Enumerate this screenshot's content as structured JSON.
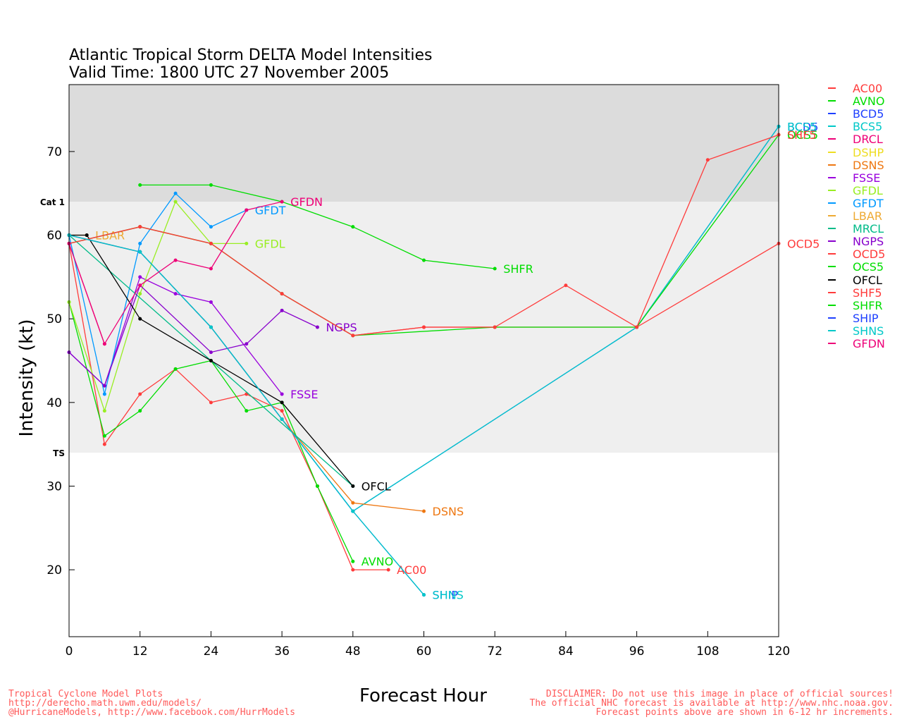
{
  "title": [
    "Atlantic Tropical Storm DELTA Model Intensities",
    "Valid Time: 1800 UTC 27 November 2005"
  ],
  "footer_left": [
    "Tropical Cyclone Model Plots",
    "http://derecho.math.uwm.edu/models/",
    "@HurricaneModels, http://www.facebook.com/HurrModels"
  ],
  "footer_right": [
    "DISCLAIMER: Do not use this image in place of official sources!",
    "The official NHC forecast is available at http://www.nhc.noaa.gov.",
    "Forecast points above are shown in 6-12 hr increments."
  ],
  "chart_data": {
    "type": "line",
    "title": "Atlantic Tropical Storm DELTA Model Intensities",
    "subtitle": "Valid Time: 1800 UTC 27 November 2005",
    "xlabel": "Forecast Hour",
    "ylabel": "Intensity (kt)",
    "xlim": [
      0,
      120
    ],
    "ylim": [
      12,
      78
    ],
    "xticks": [
      0,
      12,
      24,
      36,
      48,
      60,
      72,
      84,
      96,
      108,
      120
    ],
    "yticks": [
      20,
      30,
      40,
      50,
      60,
      70
    ],
    "grid": false,
    "legend_position": "right",
    "bands": [
      {
        "label": "TS",
        "from": 34,
        "to": 64,
        "color": "#efefef"
      },
      {
        "label": "Cat 1",
        "from": 64,
        "to": 78,
        "color": "#dcdcdc"
      }
    ],
    "series": [
      {
        "name": "AC00",
        "color": "#ff3b3b",
        "end_label": "AC00",
        "points": [
          [
            0,
            59
          ],
          [
            6,
            35
          ],
          [
            12,
            41
          ],
          [
            18,
            44
          ],
          [
            24,
            40
          ],
          [
            30,
            41
          ],
          [
            36,
            39
          ],
          [
            42,
            30
          ],
          [
            48,
            20
          ],
          [
            54,
            20
          ]
        ]
      },
      {
        "name": "AVNO",
        "color": "#00dd00",
        "end_label": "AVNO",
        "points": [
          [
            0,
            52
          ],
          [
            6,
            36
          ],
          [
            12,
            39
          ],
          [
            18,
            44
          ],
          [
            24,
            45
          ],
          [
            30,
            39
          ],
          [
            36,
            40
          ],
          [
            42,
            30
          ],
          [
            48,
            21
          ]
        ]
      },
      {
        "name": "BCD5",
        "color": "#1e40ff",
        "end_label": "BCD5",
        "points": [
          [
            0,
            60
          ],
          [
            12,
            58
          ],
          [
            24,
            49
          ],
          [
            36,
            38
          ],
          [
            48,
            27
          ],
          [
            96,
            49
          ],
          [
            120,
            73
          ]
        ]
      },
      {
        "name": "BCS5",
        "color": "#00c8c8",
        "end_label": "BCS5",
        "points": [
          [
            0,
            60
          ],
          [
            12,
            58
          ],
          [
            24,
            49
          ],
          [
            36,
            38
          ],
          [
            48,
            27
          ],
          [
            96,
            49
          ],
          [
            120,
            73
          ]
        ]
      },
      {
        "name": "DRCL",
        "color": "#ee0077",
        "end_label": "",
        "points": [
          [
            0,
            59
          ],
          [
            6,
            47
          ]
        ]
      },
      {
        "name": "DSHP",
        "color": "#eedd22",
        "end_label": "",
        "points": []
      },
      {
        "name": "DSNS",
        "color": "#ee7711",
        "end_label": "DSNS",
        "points": [
          [
            0,
            60
          ],
          [
            12,
            58
          ],
          [
            24,
            49
          ],
          [
            36,
            38
          ],
          [
            48,
            28
          ],
          [
            60,
            27
          ]
        ]
      },
      {
        "name": "FSSE",
        "color": "#9900dd",
        "end_label": "FSSE",
        "points": [
          [
            0,
            46
          ],
          [
            6,
            42
          ],
          [
            12,
            55
          ],
          [
            18,
            53
          ],
          [
            24,
            52
          ],
          [
            36,
            41
          ]
        ]
      },
      {
        "name": "GFDL",
        "color": "#99ee22",
        "end_label": "GFDL",
        "points": [
          [
            0,
            52
          ],
          [
            6,
            39
          ],
          [
            12,
            53
          ],
          [
            18,
            64
          ],
          [
            24,
            59
          ],
          [
            30,
            59
          ]
        ]
      },
      {
        "name": "GFDT",
        "color": "#0099ff",
        "end_label": "GFDT",
        "points": [
          [
            0,
            60
          ],
          [
            6,
            41
          ],
          [
            12,
            59
          ],
          [
            18,
            65
          ],
          [
            24,
            61
          ],
          [
            30,
            63
          ]
        ]
      },
      {
        "name": "LBAR",
        "color": "#eeaa33",
        "end_label": "LBAR",
        "points": [
          [
            0,
            60
          ],
          [
            3,
            60
          ]
        ]
      },
      {
        "name": "MRCL",
        "color": "#00bb88",
        "end_label": "",
        "points": [
          [
            0,
            60
          ],
          [
            48,
            30
          ]
        ]
      },
      {
        "name": "NGPS",
        "color": "#8800cc",
        "end_label": "NGPS",
        "points": [
          [
            0,
            46
          ],
          [
            6,
            42
          ],
          [
            12,
            54
          ],
          [
            24,
            46
          ],
          [
            30,
            47
          ],
          [
            36,
            51
          ],
          [
            42,
            49
          ]
        ]
      },
      {
        "name": "OCD5",
        "color": "#ff3b3b",
        "end_label": "OCD5",
        "points": [
          [
            0,
            59
          ],
          [
            12,
            61
          ],
          [
            24,
            59
          ],
          [
            36,
            53
          ],
          [
            48,
            48
          ],
          [
            60,
            49
          ],
          [
            72,
            49
          ],
          [
            96,
            49
          ],
          [
            120,
            59
          ]
        ]
      },
      {
        "name": "OCS5",
        "color": "#00dd00",
        "end_label": "OCS5",
        "points": [
          [
            0,
            59
          ],
          [
            12,
            61
          ],
          [
            24,
            59
          ],
          [
            36,
            53
          ],
          [
            48,
            48
          ],
          [
            72,
            49
          ],
          [
            96,
            49
          ],
          [
            120,
            72
          ]
        ]
      },
      {
        "name": "OFCL",
        "color": "#000000",
        "end_label": "OFCL",
        "points": [
          [
            0,
            60
          ],
          [
            3,
            60
          ],
          [
            12,
            50
          ],
          [
            24,
            45
          ],
          [
            36,
            40
          ],
          [
            48,
            30
          ]
        ]
      },
      {
        "name": "SHF5",
        "color": "#ff3b3b",
        "end_label": "SHF5",
        "points": [
          [
            0,
            59
          ],
          [
            12,
            61
          ],
          [
            24,
            59
          ],
          [
            36,
            53
          ],
          [
            48,
            48
          ],
          [
            60,
            49
          ],
          [
            72,
            49
          ],
          [
            84,
            54
          ],
          [
            96,
            49
          ],
          [
            108,
            69
          ],
          [
            120,
            72
          ]
        ]
      },
      {
        "name": "SHFR",
        "color": "#00dd00",
        "end_label": "SHFR",
        "points": [
          [
            12,
            66
          ],
          [
            24,
            66
          ],
          [
            36,
            64
          ],
          [
            48,
            61
          ],
          [
            60,
            57
          ],
          [
            72,
            56
          ]
        ]
      },
      {
        "name": "SHIP",
        "color": "#1e40ff",
        "end_label": "SHIP",
        "points": [
          [
            0,
            60
          ],
          [
            12,
            58
          ],
          [
            24,
            49
          ],
          [
            36,
            38
          ],
          [
            48,
            27
          ],
          [
            60,
            17
          ]
        ]
      },
      {
        "name": "SHNS",
        "color": "#00c8c8",
        "end_label": "SHNS",
        "points": [
          [
            0,
            60
          ],
          [
            12,
            58
          ],
          [
            24,
            49
          ],
          [
            36,
            38
          ],
          [
            48,
            27
          ],
          [
            60,
            17
          ]
        ]
      },
      {
        "name": "GFDN",
        "color": "#ee0077",
        "end_label": "GFDN",
        "points": [
          [
            0,
            59
          ],
          [
            6,
            47
          ],
          [
            12,
            54
          ],
          [
            18,
            57
          ],
          [
            24,
            56
          ],
          [
            30,
            63
          ],
          [
            36,
            64
          ]
        ]
      }
    ]
  }
}
